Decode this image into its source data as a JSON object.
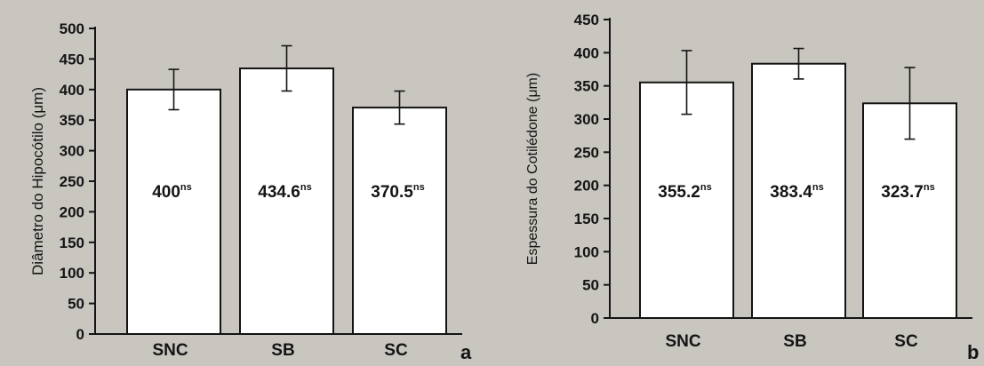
{
  "chart_data": [
    {
      "type": "bar",
      "panel_label": "a",
      "categories": [
        "SNC",
        "SB",
        "SC"
      ],
      "values": [
        400,
        434.6,
        370.5
      ],
      "errors": [
        33,
        37,
        27
      ],
      "data_labels": [
        "400",
        "434.6",
        "370.5"
      ],
      "significance": "ns",
      "ylabel": "Diâmetro do Hipocótilo (μm)",
      "ylim": [
        0,
        500
      ],
      "yticks": [
        0,
        50,
        100,
        150,
        200,
        250,
        300,
        350,
        400,
        450,
        500
      ],
      "grid": false
    },
    {
      "type": "bar",
      "panel_label": "b",
      "categories": [
        "SNC",
        "SB",
        "SC"
      ],
      "values": [
        355.2,
        383.4,
        323.7
      ],
      "errors": [
        48,
        23,
        54
      ],
      "data_labels": [
        "355.2",
        "383.4",
        "323.7"
      ],
      "significance": "ns",
      "ylabel": "Espessura do Cotilédone (μm)",
      "ylim": [
        0,
        450
      ],
      "yticks": [
        0,
        50,
        100,
        150,
        200,
        250,
        300,
        350,
        400,
        450
      ],
      "grid": false
    }
  ],
  "colors": {
    "bar_fill": "#ffffff",
    "ink": "#141414",
    "background": "#c9c6c0"
  }
}
